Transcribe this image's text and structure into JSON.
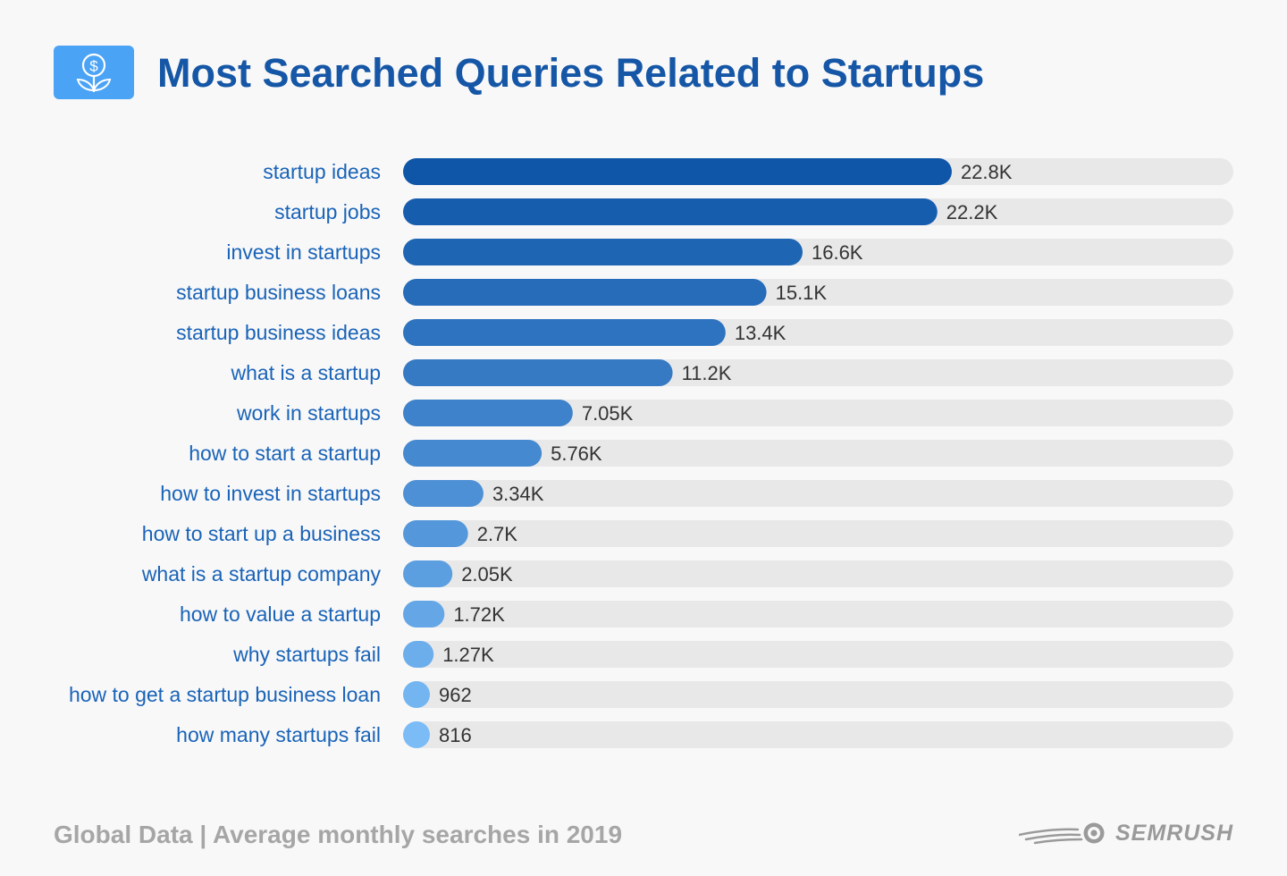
{
  "title": "Most Searched Queries Related to Startups",
  "footer": "Global Data | Average monthly searches in 2019",
  "brand": "SEMRUSH",
  "icon": "money-plant-icon",
  "colors": {
    "title": "#1557a6",
    "label": "#1963b7",
    "track": "#e8e8e9",
    "bar_dark": "#0f56a8",
    "bar_light": "#7bbcf7",
    "icon_bg": "#4aa3f5",
    "footer": "#a6a6a6"
  },
  "chart_data": {
    "type": "bar",
    "orientation": "horizontal",
    "categories": [
      "startup ideas",
      "startup jobs",
      "invest in startups",
      "startup business loans",
      "startup business ideas",
      "what is a startup",
      "work in startups",
      "how to start a startup",
      "how to invest in startups",
      "how to start up a business",
      "what is a startup company",
      "how to value a startup",
      "why startups fail",
      "how to get a startup business loan",
      "how many startups fail"
    ],
    "values": [
      22800,
      22200,
      16600,
      15100,
      13400,
      11200,
      7050,
      5760,
      3340,
      2700,
      2050,
      1720,
      1270,
      962,
      816
    ],
    "value_labels": [
      "22.8K",
      "22.2K",
      "16.6K",
      "15.1K",
      "13.4K",
      "11.2K",
      "7.05K",
      "5.76K",
      "3.34K",
      "2.7K",
      "2.05K",
      "1.72K",
      "1.27K",
      "962",
      "816"
    ],
    "xlim": [
      0,
      34500
    ],
    "title": "Most Searched Queries Related to Startups",
    "xlabel": "",
    "ylabel": "",
    "grid": false,
    "legend": "none"
  }
}
